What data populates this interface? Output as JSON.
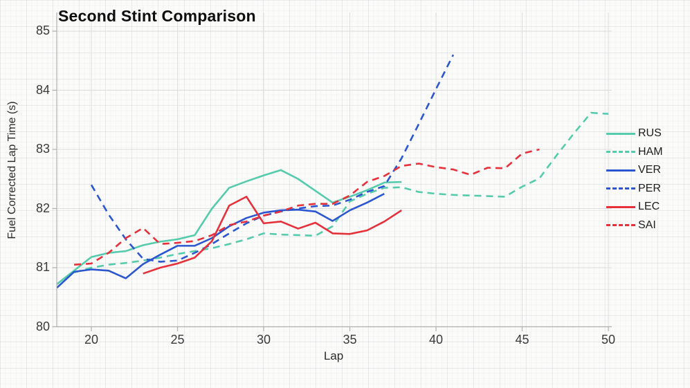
{
  "title": "Second Stint Comparison",
  "axes": {
    "xlabel": "Lap",
    "ylabel": "Fuel Corrected Lap Time (s)",
    "x_ticks": [
      20,
      25,
      30,
      35,
      40,
      45,
      50
    ],
    "y_ticks": [
      80,
      81,
      82,
      83,
      84,
      85
    ]
  },
  "colors": {
    "teal": "#55CBAC",
    "blue": "#2B56D0",
    "red": "#E6303A",
    "grid_major": "#dedede",
    "axis_spine": "#b0b0b0",
    "tick_label": "#3a3a3a"
  },
  "legend": {
    "position": "right",
    "entries": [
      "RUS",
      "HAM",
      "VER",
      "PER",
      "LEC",
      "SAI"
    ]
  },
  "chart_data": {
    "type": "line",
    "title": "Second Stint Comparison",
    "xlabel": "Lap",
    "ylabel": "Fuel Corrected Lap Time (s)",
    "xlim": [
      17.9,
      50.6
    ],
    "ylim": [
      80,
      85
    ],
    "grid": true,
    "legend_position": "right",
    "series": [
      {
        "name": "RUS",
        "color": "#55CBAC",
        "style": "solid",
        "laps": [
          18,
          19,
          20,
          21,
          22,
          23,
          24,
          25,
          26,
          27,
          28,
          29,
          30,
          31,
          32,
          33,
          34,
          35,
          36,
          37,
          38
        ],
        "values": [
          80.72,
          80.95,
          81.18,
          81.25,
          81.28,
          81.38,
          81.44,
          81.48,
          81.55,
          82.0,
          82.35,
          82.46,
          82.56,
          82.65,
          82.5,
          82.3,
          82.1,
          82.2,
          82.31,
          82.44,
          82.45
        ]
      },
      {
        "name": "HAM",
        "color": "#55CBAC",
        "style": "dashed",
        "laps": [
          19,
          20,
          21,
          22,
          23,
          24,
          25,
          26,
          27,
          28,
          29,
          30,
          31,
          32,
          33,
          34,
          35,
          36,
          37,
          38,
          39,
          40,
          41,
          42,
          43,
          44,
          45,
          46,
          47,
          48,
          49,
          50
        ],
        "values": [
          80.92,
          81.0,
          81.05,
          81.08,
          81.12,
          81.17,
          81.23,
          81.28,
          81.33,
          81.4,
          81.48,
          81.58,
          81.56,
          81.55,
          81.54,
          81.7,
          82.12,
          82.25,
          82.35,
          82.36,
          82.28,
          82.25,
          82.23,
          82.22,
          82.21,
          82.2,
          82.37,
          82.51,
          82.9,
          83.27,
          83.62,
          83.6
        ]
      },
      {
        "name": "VER",
        "color": "#2B56D0",
        "style": "solid",
        "laps": [
          18,
          19,
          20,
          21,
          22,
          23,
          24,
          25,
          26,
          27,
          28,
          29,
          30,
          31,
          32,
          33,
          34,
          35,
          36,
          37
        ],
        "values": [
          80.66,
          80.93,
          80.97,
          80.95,
          80.82,
          81.06,
          81.22,
          81.37,
          81.37,
          81.5,
          81.7,
          81.84,
          81.93,
          81.97,
          81.98,
          81.95,
          81.79,
          81.97,
          82.1,
          82.25
        ]
      },
      {
        "name": "PER",
        "color": "#2B56D0",
        "style": "dashed",
        "laps": [
          20,
          21,
          22,
          23,
          24,
          25,
          26,
          27,
          28,
          29,
          30,
          31,
          32,
          33,
          34,
          35,
          36,
          37,
          38,
          39,
          40,
          41
        ],
        "values": [
          82.4,
          81.9,
          81.48,
          81.15,
          81.1,
          81.12,
          81.25,
          81.4,
          81.58,
          81.75,
          81.88,
          81.95,
          82.0,
          82.04,
          82.05,
          82.15,
          82.28,
          82.38,
          82.85,
          83.43,
          84.02,
          84.6
        ]
      },
      {
        "name": "LEC",
        "color": "#E6303A",
        "style": "solid",
        "laps": [
          23,
          24,
          25,
          26,
          27,
          28,
          29,
          30,
          31,
          32,
          33,
          34,
          35,
          36,
          37,
          38
        ],
        "values": [
          80.9,
          81.0,
          81.07,
          81.17,
          81.45,
          82.05,
          82.2,
          81.75,
          81.78,
          81.66,
          81.76,
          81.58,
          81.57,
          81.63,
          81.78,
          81.97
        ]
      },
      {
        "name": "SAI",
        "color": "#E6303A",
        "style": "dashed",
        "laps": [
          19,
          20,
          21,
          22,
          23,
          24,
          25,
          26,
          27,
          28,
          29,
          30,
          31,
          32,
          33,
          34,
          35,
          36,
          37,
          38,
          39,
          40,
          41,
          42,
          43,
          44,
          45,
          46
        ],
        "values": [
          81.05,
          81.07,
          81.25,
          81.5,
          81.67,
          81.4,
          81.42,
          81.45,
          81.55,
          81.72,
          81.78,
          81.88,
          81.95,
          82.05,
          82.08,
          82.08,
          82.22,
          82.45,
          82.55,
          82.72,
          82.76,
          82.7,
          82.66,
          82.57,
          82.69,
          82.68,
          82.93,
          83.0
        ]
      }
    ]
  }
}
